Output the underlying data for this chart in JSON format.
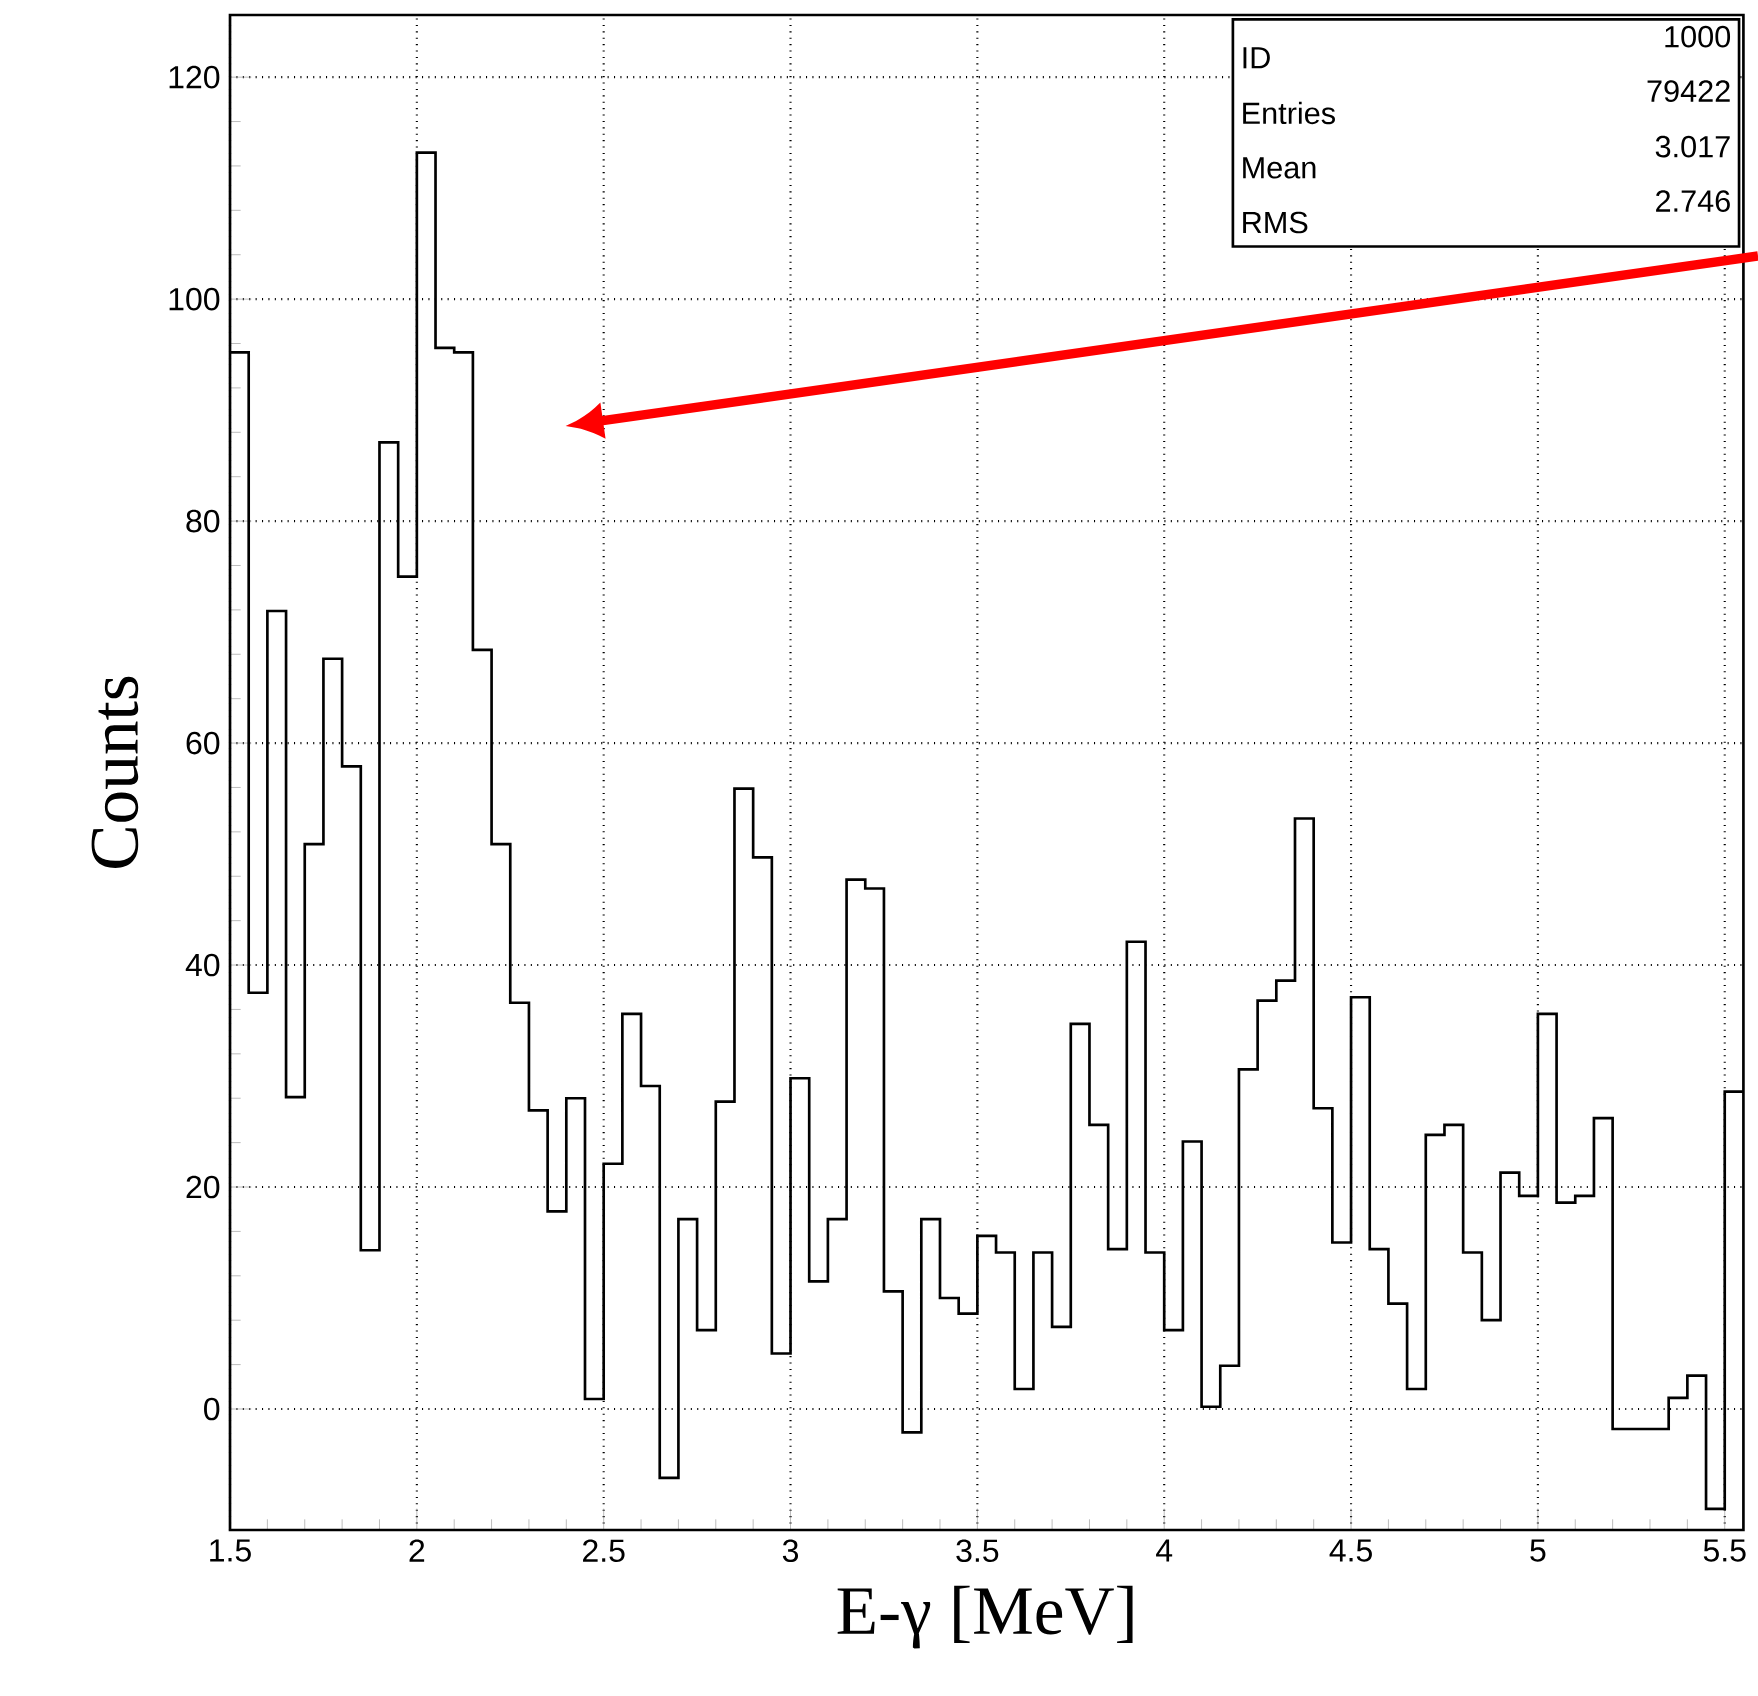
{
  "chart_data": {
    "type": "histogram",
    "xlabel": "E-γ [MeV]",
    "ylabel": "Counts",
    "color": "#000000",
    "bins": [
      1.5,
      1.55,
      1.6,
      1.65,
      1.7,
      1.75,
      1.8,
      1.85,
      1.9,
      1.95,
      2.0,
      2.05,
      2.1,
      2.15,
      2.2,
      2.25,
      2.3,
      2.35,
      2.4,
      2.45,
      2.5,
      2.55,
      2.6,
      2.65,
      2.7,
      2.75,
      2.8,
      2.85,
      2.9,
      2.95,
      3.0,
      3.05,
      3.1,
      3.15,
      3.2,
      3.25,
      3.3,
      3.35,
      3.4,
      3.45,
      3.5,
      3.55,
      3.6,
      3.65,
      3.7,
      3.75,
      3.8,
      3.85,
      3.9,
      3.95,
      4.0,
      4.05,
      4.1,
      4.15,
      4.2,
      4.25,
      4.3,
      4.35,
      4.4,
      4.45,
      4.5,
      4.55,
      4.6,
      4.65,
      4.7,
      4.75,
      4.8,
      4.85,
      4.9,
      4.95,
      5.0,
      5.05,
      5.1,
      5.15,
      5.2,
      5.25,
      5.3,
      5.35,
      5.4,
      5.45,
      5.5,
      5.55
    ],
    "values": [
      95.2,
      37.5,
      71.9,
      28.1,
      50.9,
      67.6,
      57.9,
      14.3,
      87.1,
      75.0,
      113.2,
      95.6,
      95.2,
      68.4,
      50.9,
      36.6,
      26.9,
      17.8,
      28.0,
      0.9,
      22.1,
      35.6,
      29.1,
      -6.2,
      17.1,
      7.1,
      27.7,
      55.9,
      49.7,
      5.0,
      29.8,
      11.5,
      17.1,
      47.7,
      46.9,
      10.6,
      -2.1,
      17.1,
      10.0,
      8.6,
      15.6,
      14.1,
      1.8,
      14.1,
      7.4,
      34.7,
      25.6,
      14.4,
      42.1,
      14.1,
      7.1,
      24.1,
      0.2,
      3.9,
      30.6,
      36.8,
      38.6,
      53.2,
      27.1,
      15.0,
      37.1,
      14.4,
      9.5,
      1.8,
      24.7,
      25.6,
      14.1,
      8.0,
      21.3,
      19.2,
      35.6,
      18.6,
      19.2,
      26.2,
      -1.8,
      -1.8,
      -1.8,
      1.0,
      3.0,
      -9.0,
      28.6
    ],
    "xlim": [
      1.5,
      5.55
    ],
    "ylim": [
      -10.9,
      125.6
    ],
    "xticks": [
      1.5,
      2,
      2.5,
      3,
      3.5,
      4,
      4.5,
      5,
      5.5
    ],
    "yticks": [
      0,
      20,
      40,
      60,
      80,
      100,
      120
    ],
    "grid": true,
    "line_style": "dotted",
    "annotations": [
      "ID",
      "1000",
      "Entries",
      "79422",
      "Mean",
      "3.017",
      "RMS",
      "2.746"
    ]
  }
}
